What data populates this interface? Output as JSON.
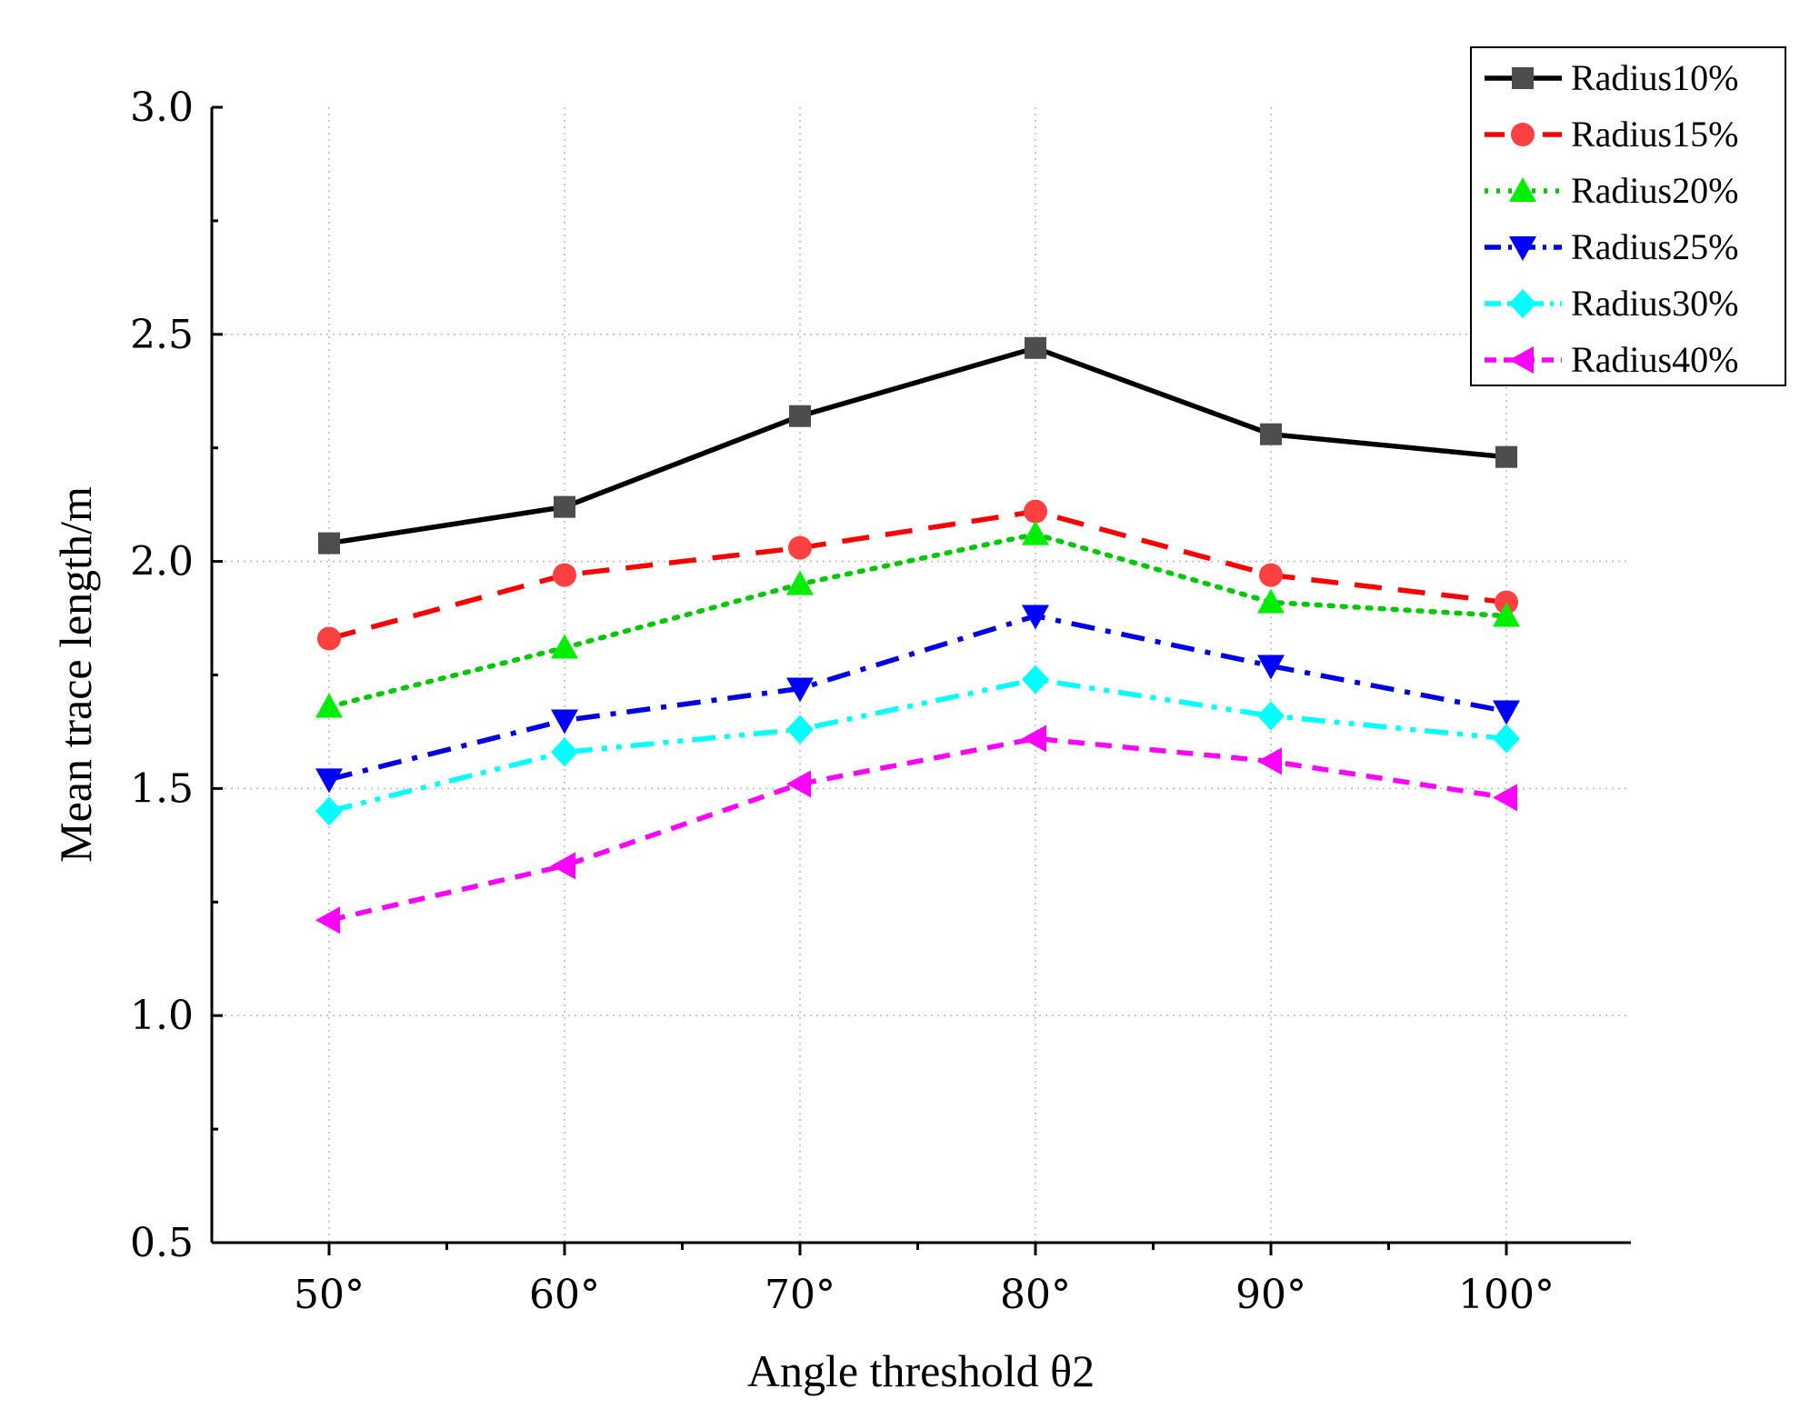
{
  "chart_data": {
    "type": "line",
    "xlabel": "Angle threshold  θ2",
    "ylabel": "Mean trace length/m",
    "categories": [
      "50°",
      "60°",
      "70°",
      "80°",
      "90°",
      "100°"
    ],
    "ylim": [
      0.5,
      3.0
    ],
    "yticks": [
      "0.5",
      "1.0",
      "1.5",
      "2.0",
      "2.5",
      "3.0"
    ],
    "grid": "dotted",
    "legend_position": "top-right",
    "series": [
      {
        "name": "Radius10%",
        "values": [
          2.04,
          2.12,
          2.32,
          2.47,
          2.28,
          2.23
        ],
        "color": "#000000",
        "marker": "square",
        "marker_color": "#4d4d4d",
        "line_style": "solid"
      },
      {
        "name": "Radius15%",
        "values": [
          1.83,
          1.97,
          2.03,
          2.11,
          1.97,
          1.91
        ],
        "color": "#ff0000",
        "marker": "circle",
        "marker_color": "#ff4040",
        "line_style": "dash"
      },
      {
        "name": "Radius20%",
        "values": [
          1.68,
          1.81,
          1.95,
          2.06,
          1.91,
          1.88
        ],
        "color": "#00c800",
        "marker": "triangle-up",
        "marker_color": "#00ee00",
        "line_style": "dot"
      },
      {
        "name": "Radius25%",
        "values": [
          1.52,
          1.65,
          1.72,
          1.88,
          1.77,
          1.67
        ],
        "color": "#0000e6",
        "marker": "triangle-down",
        "marker_color": "#0000ff",
        "line_style": "dashdot"
      },
      {
        "name": "Radius30%",
        "values": [
          1.45,
          1.58,
          1.63,
          1.74,
          1.66,
          1.61
        ],
        "color": "#00ffff",
        "marker": "diamond",
        "marker_color": "#00ffff",
        "line_style": "dashdotdot"
      },
      {
        "name": "Radius40%",
        "values": [
          1.21,
          1.33,
          1.51,
          1.61,
          1.56,
          1.48
        ],
        "color": "#ff00ff",
        "marker": "triangle-left",
        "marker_color": "#ff00ff",
        "line_style": "shortdash"
      }
    ]
  }
}
